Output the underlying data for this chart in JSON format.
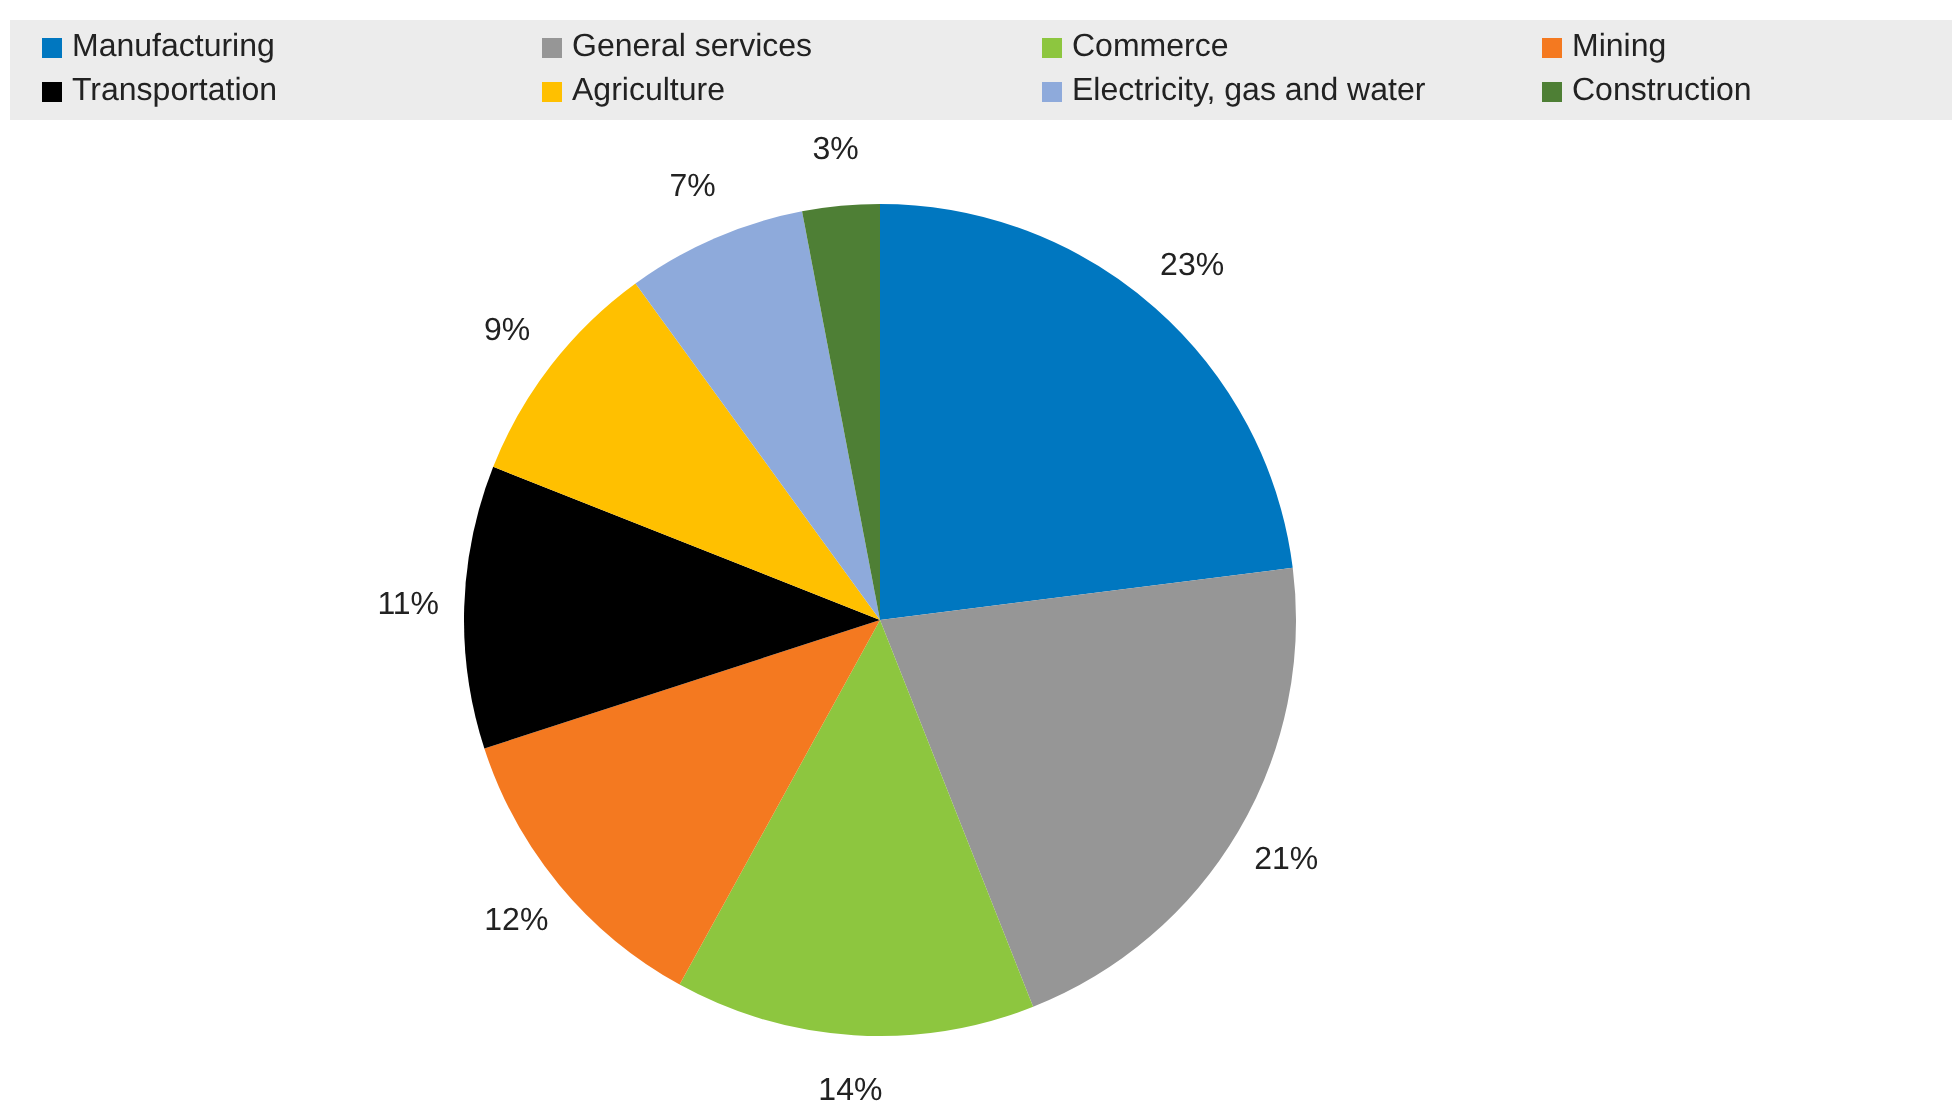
{
  "chart_data": {
    "type": "pie",
    "categories": [
      "Manufacturing",
      "General services",
      "Commerce",
      "Mining",
      "Transportation",
      "Agriculture",
      "Electricity, gas and water",
      "Construction"
    ],
    "values": [
      23,
      21,
      14,
      12,
      11,
      9,
      7,
      3
    ],
    "value_labels": [
      "23%",
      "21%",
      "14%",
      "12%",
      "11%",
      "9%",
      "7%",
      "3%"
    ],
    "colors": [
      "#0077c0",
      "#969696",
      "#8dc63f",
      "#f47920",
      "#000000",
      "#ffc000",
      "#8eaadb",
      "#4e7f35"
    ],
    "legend": "top"
  }
}
